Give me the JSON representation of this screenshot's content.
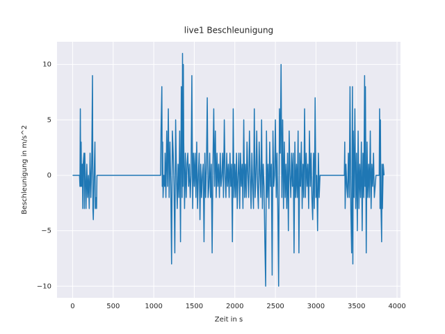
{
  "chart_data": {
    "type": "line",
    "title": "live1 Beschleunigung",
    "xlabel": "Zeit in s",
    "ylabel": "Beschleunigung in m/s^2",
    "color": "#1f77b4",
    "grid": true,
    "xlim": [
      -192.5,
      4042.5
    ],
    "ylim": [
      -11.05,
      12.05
    ],
    "xticks": [
      0,
      500,
      1000,
      1500,
      2000,
      2500,
      3000,
      3500,
      4000
    ],
    "yticks": [
      {
        "value": -10,
        "label": "−10"
      },
      {
        "value": -5,
        "label": "−5"
      },
      0,
      5,
      10
    ],
    "x": [
      0,
      85,
      90,
      95,
      100,
      105,
      110,
      120,
      125,
      130,
      140,
      145,
      150,
      160,
      165,
      175,
      185,
      195,
      205,
      215,
      225,
      235,
      245,
      250,
      255,
      265,
      275,
      280,
      290,
      295,
      300,
      1085,
      1090,
      1100,
      1105,
      1110,
      1115,
      1125,
      1135,
      1140,
      1150,
      1160,
      1170,
      1180,
      1190,
      1200,
      1210,
      1220,
      1230,
      1240,
      1250,
      1260,
      1270,
      1280,
      1290,
      1300,
      1310,
      1320,
      1330,
      1340,
      1350,
      1355,
      1360,
      1365,
      1370,
      1380,
      1390,
      1400,
      1410,
      1420,
      1430,
      1440,
      1450,
      1460,
      1470,
      1480,
      1490,
      1500,
      1510,
      1520,
      1530,
      1540,
      1550,
      1560,
      1570,
      1580,
      1590,
      1600,
      1610,
      1620,
      1630,
      1640,
      1650,
      1660,
      1670,
      1680,
      1690,
      1700,
      1710,
      1720,
      1730,
      1740,
      1750,
      1760,
      1770,
      1780,
      1790,
      1800,
      1810,
      1820,
      1830,
      1840,
      1850,
      1860,
      1870,
      1880,
      1890,
      1900,
      1910,
      1920,
      1930,
      1940,
      1950,
      1960,
      1970,
      1980,
      1990,
      2000,
      2010,
      2020,
      2030,
      2040,
      2050,
      2060,
      2070,
      2080,
      2090,
      2100,
      2110,
      2120,
      2130,
      2140,
      2150,
      2160,
      2170,
      2180,
      2190,
      2200,
      2210,
      2220,
      2230,
      2240,
      2250,
      2260,
      2270,
      2280,
      2290,
      2300,
      2310,
      2320,
      2330,
      2340,
      2350,
      2360,
      2370,
      2380,
      2390,
      2400,
      2410,
      2420,
      2430,
      2440,
      2450,
      2460,
      2470,
      2480,
      2490,
      2500,
      2510,
      2520,
      2530,
      2540,
      2550,
      2560,
      2570,
      2580,
      2590,
      2600,
      2610,
      2620,
      2630,
      2640,
      2650,
      2660,
      2670,
      2680,
      2690,
      2700,
      2710,
      2720,
      2730,
      2740,
      2750,
      2760,
      2770,
      2780,
      2790,
      2800,
      2810,
      2820,
      2830,
      2840,
      2850,
      2860,
      2870,
      2880,
      2890,
      2900,
      2910,
      2920,
      2930,
      2940,
      2950,
      2960,
      2970,
      2980,
      2990,
      3000,
      3010,
      3020,
      3030,
      3040,
      3050,
      3350,
      3355,
      3360,
      3370,
      3380,
      3390,
      3400,
      3410,
      3420,
      3430,
      3440,
      3450,
      3455,
      3460,
      3470,
      3480,
      3490,
      3500,
      3510,
      3520,
      3530,
      3540,
      3550,
      3560,
      3570,
      3580,
      3590,
      3600,
      3605,
      3610,
      3620,
      3630,
      3640,
      3650,
      3660,
      3670,
      3680,
      3690,
      3700,
      3710,
      3720,
      3730,
      3740,
      3780,
      3785,
      3790,
      3795,
      3800,
      3810,
      3815,
      3820,
      3830,
      3840
    ],
    "values": [
      0,
      0,
      -1,
      6,
      -1,
      3,
      -1,
      1,
      -3,
      1,
      2,
      -3,
      2,
      -1,
      -3,
      1,
      -2,
      0,
      -3,
      2,
      -2,
      1,
      9,
      -3,
      -4,
      0,
      3,
      -3,
      -2,
      -3,
      0,
      0,
      4,
      8,
      -1,
      3,
      -2,
      0,
      -1,
      2,
      -2,
      4,
      -1,
      6,
      -2,
      3,
      -1,
      -8,
      4,
      2,
      -1,
      -7,
      5,
      0,
      -3,
      1,
      -2,
      4,
      -6,
      8,
      -2,
      11,
      -1,
      10,
      3,
      -3,
      2,
      -2,
      1,
      2,
      -1,
      1,
      -2,
      0,
      9,
      -3,
      2,
      -1,
      2,
      -2,
      3,
      -3,
      0,
      2,
      -4,
      1,
      -2,
      0,
      1,
      -6,
      2,
      -2,
      1,
      7,
      -2,
      -1,
      2,
      -2,
      1,
      -7,
      1,
      6,
      -1,
      4,
      -2,
      2,
      -1,
      1,
      -2,
      2,
      -1,
      0,
      2,
      -2,
      5,
      0,
      -2,
      2,
      -1,
      1,
      -2,
      2,
      -1,
      1,
      -6,
      6,
      -2,
      1,
      -2,
      2,
      -3,
      0,
      2,
      -3,
      2,
      -1,
      1,
      -3,
      5,
      -2,
      1,
      -2,
      3,
      0,
      -2,
      4,
      0,
      -3,
      2,
      -1,
      -3,
      6,
      -2,
      0,
      4,
      -1,
      -3,
      3,
      0,
      -2,
      5,
      -3,
      1,
      -1,
      -6,
      -10,
      4,
      -2,
      1,
      -3,
      3,
      -1,
      1,
      -9,
      4,
      -1,
      0,
      5,
      -2,
      2,
      -3,
      -10,
      6,
      2,
      10,
      -2,
      5,
      -3,
      3,
      -2,
      1,
      -3,
      2,
      -5,
      4,
      0,
      -2,
      2,
      -1,
      2,
      -7,
      3,
      -2,
      1,
      -2,
      4,
      -7,
      2,
      -1,
      3,
      -3,
      1,
      -2,
      6,
      -2,
      2,
      -1,
      1,
      -3,
      4,
      -1,
      2,
      -2,
      -4,
      2,
      -3,
      7,
      -2,
      0,
      -5,
      2,
      -2,
      0,
      0,
      3,
      -3,
      1,
      -1,
      -2,
      2,
      -2,
      8,
      -3,
      -7,
      8,
      -8,
      4,
      -2,
      6,
      -3,
      2,
      -5,
      4,
      -3,
      1,
      -2,
      3,
      -5,
      2,
      -2,
      9,
      -1,
      8,
      -7,
      3,
      -2,
      1,
      -2,
      4,
      -3,
      1,
      -1,
      2,
      -2,
      -1,
      0,
      0,
      6,
      -3,
      5,
      -2,
      -6,
      1,
      -3,
      1,
      0
    ]
  }
}
